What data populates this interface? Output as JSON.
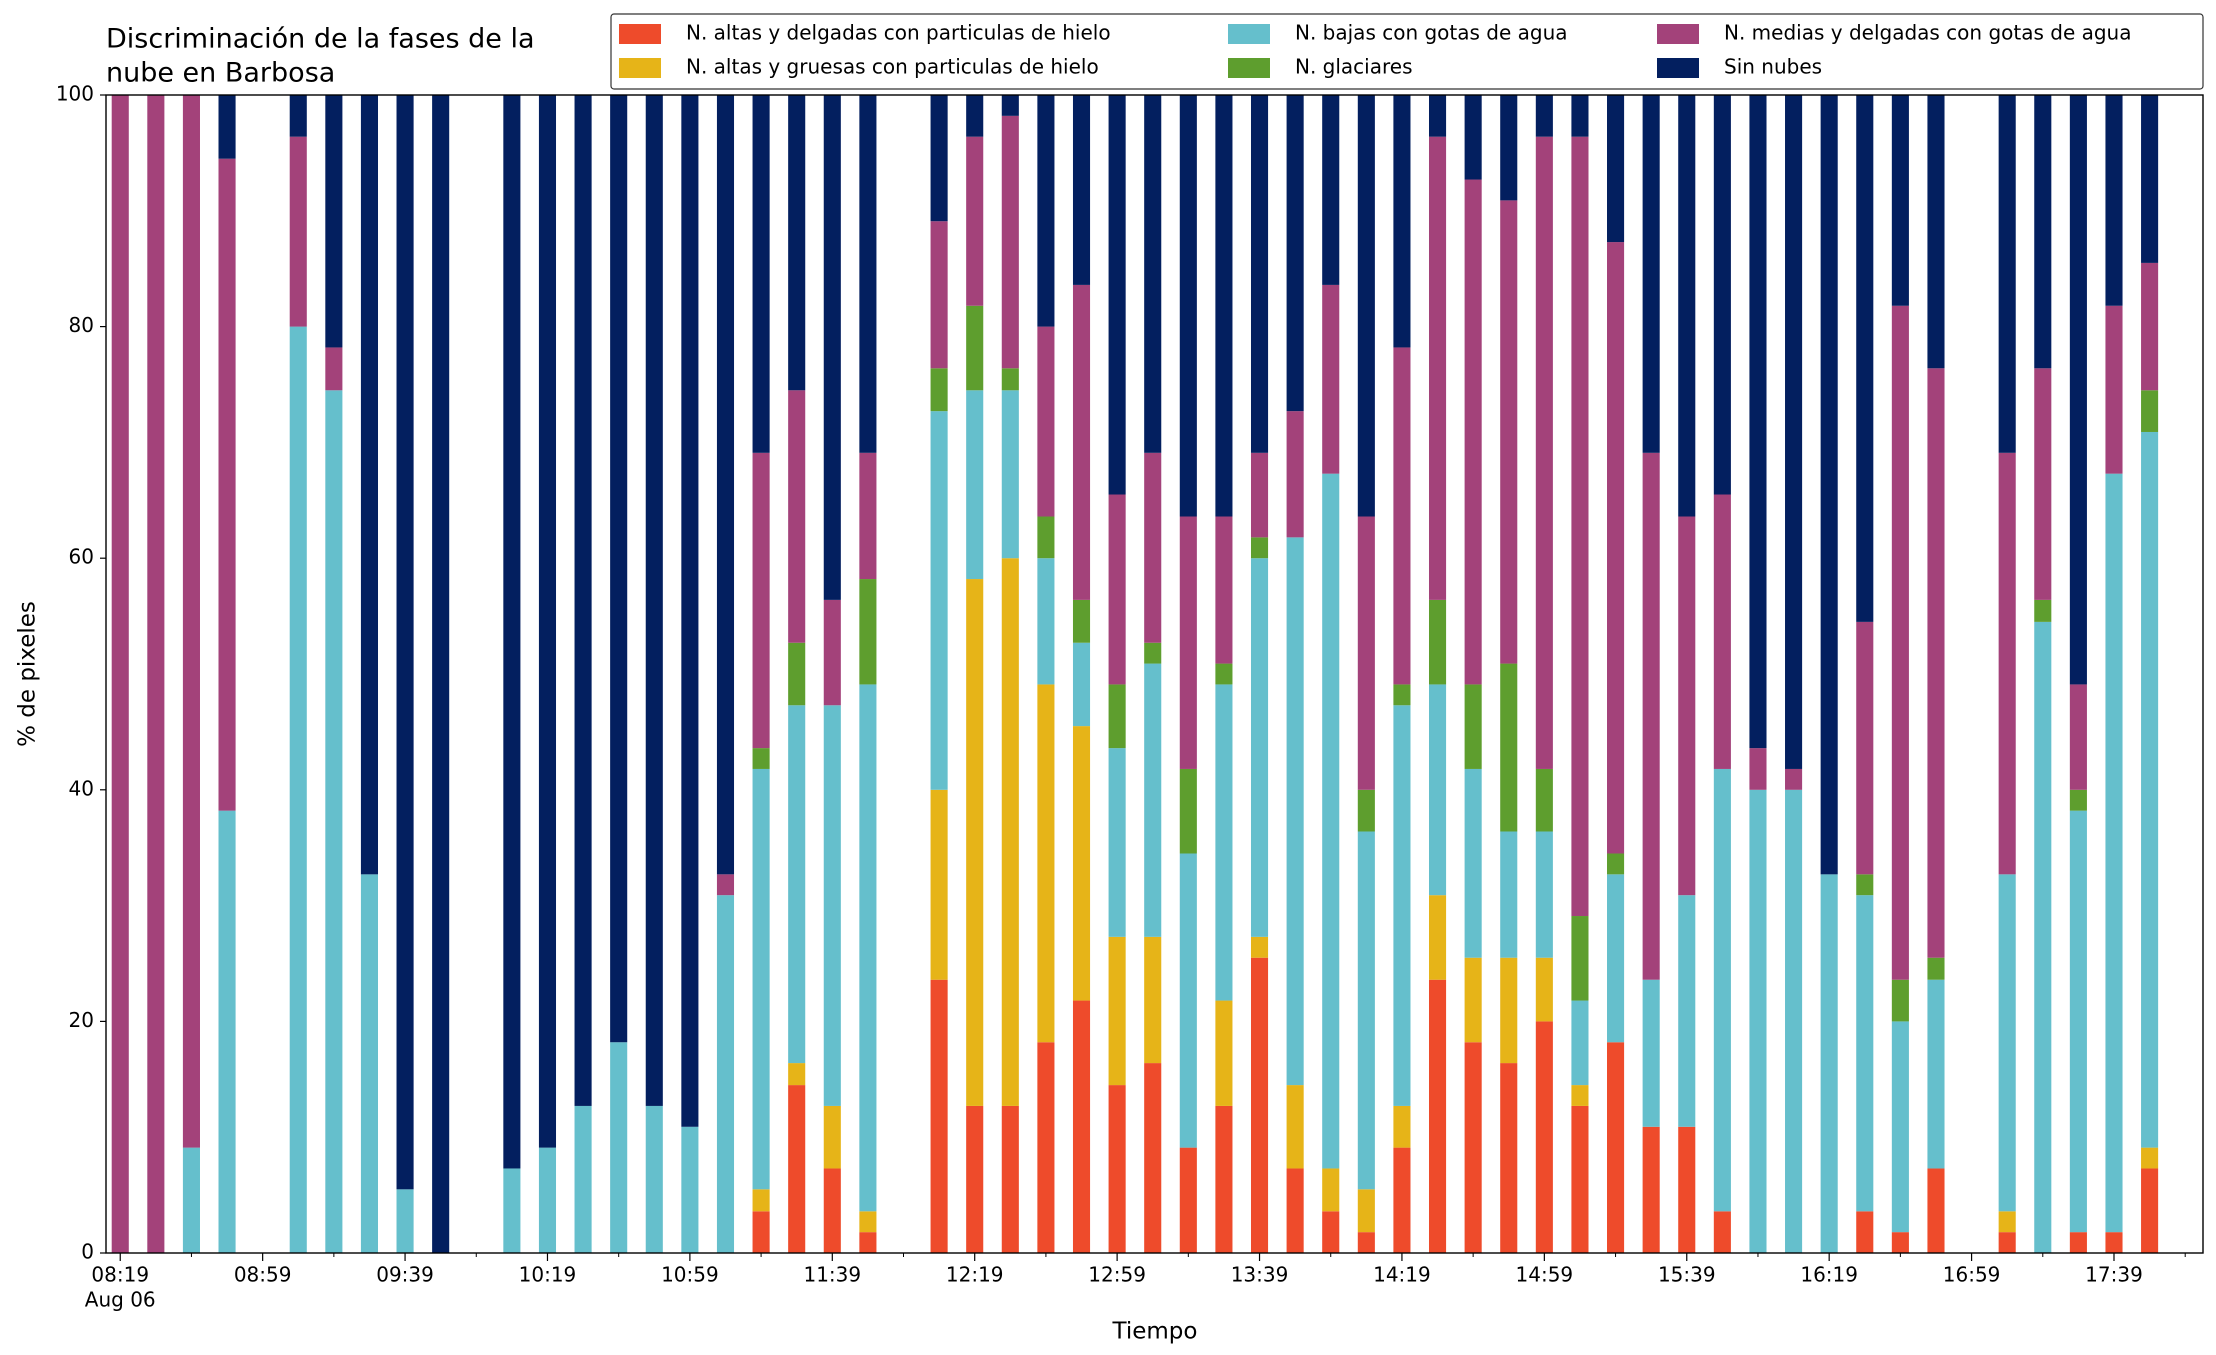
{
  "chart_data": {
    "type": "stacked_bar",
    "title": [
      "Discriminación de la fases de la",
      "nube en Barbosa"
    ],
    "xlabel": "Tiempo",
    "ylabel": "% de pixeles",
    "x": [
      "08:19",
      "08:29",
      "08:39",
      "08:49",
      "09:09",
      "09:19",
      "09:29",
      "09:39",
      "09:49",
      "10:09",
      "10:19",
      "10:29",
      "10:39",
      "10:49",
      "10:59",
      "11:09",
      "11:19",
      "11:29",
      "11:39",
      "11:49",
      "12:09",
      "12:19",
      "12:29",
      "12:39",
      "12:49",
      "12:59",
      "13:09",
      "13:19",
      "13:29",
      "13:39",
      "13:49",
      "13:59",
      "14:09",
      "14:19",
      "14:29",
      "14:39",
      "14:49",
      "14:59",
      "15:09",
      "15:19",
      "15:29",
      "15:39",
      "15:49",
      "15:59",
      "16:09",
      "16:19",
      "16:29",
      "16:39",
      "16:49",
      "17:09",
      "17:19",
      "17:29",
      "17:39",
      "17:49"
    ],
    "series": [
      {
        "name": "N. altas y delgadas con particulas de hielo",
        "color": "#ee4b2b",
        "values": [
          0,
          0,
          0,
          0,
          0,
          0,
          0,
          0,
          0,
          0,
          0,
          0,
          0,
          0,
          0,
          0,
          3.6,
          14.5,
          7.3,
          1.8,
          23.6,
          12.7,
          12.7,
          18.2,
          21.8,
          14.5,
          16.4,
          9.1,
          12.7,
          25.5,
          7.3,
          3.6,
          1.8,
          9.1,
          23.6,
          18.2,
          16.4,
          20,
          12.7,
          18.2,
          10.9,
          10.9,
          3.6,
          0,
          0,
          0,
          3.6,
          1.8,
          7.3,
          1.8,
          0,
          1.8,
          1.8,
          7.3
        ]
      },
      {
        "name": "N. altas y gruesas con particulas de hielo",
        "color": "#e6b418",
        "values": [
          0,
          0,
          0,
          0,
          0,
          0,
          0,
          0,
          0,
          0,
          0,
          0,
          0,
          0,
          0,
          0,
          1.9,
          1.9,
          5.4,
          1.8,
          16.4,
          45.5,
          47.3,
          30.9,
          23.7,
          12.8,
          10.9,
          0,
          9.1,
          1.8,
          7.2,
          3.7,
          3.7,
          3.6,
          7.3,
          7.3,
          9.1,
          5.5,
          1.8,
          0,
          0,
          0,
          0,
          0,
          0,
          0,
          0,
          0,
          0,
          1.8,
          0,
          0,
          0,
          1.8
        ]
      },
      {
        "name": "N. bajas con gotas de agua",
        "color": "#65bfcc",
        "values": [
          0,
          0,
          9.1,
          38.2,
          80,
          74.5,
          32.7,
          5.5,
          0,
          7.3,
          9.1,
          12.7,
          18.2,
          12.7,
          10.9,
          30.9,
          36.3,
          30.9,
          34.6,
          45.5,
          32.7,
          16.3,
          14.5,
          10.9,
          7.2,
          16.3,
          23.6,
          25.4,
          27.3,
          32.7,
          47.3,
          60,
          30.9,
          34.6,
          18.2,
          16.3,
          10.9,
          10.9,
          7.3,
          14.5,
          12.7,
          20,
          38.2,
          40,
          40,
          32.7,
          27.3,
          18.2,
          16.3,
          29.1,
          54.5,
          36.4,
          65.5,
          61.8
        ]
      },
      {
        "name": "N. glaciares",
        "color": "#5e9e2e",
        "values": [
          0,
          0,
          0,
          0,
          0,
          0,
          0,
          0,
          0,
          0,
          0,
          0,
          0,
          0,
          0,
          0,
          1.8,
          5.4,
          0,
          9.1,
          3.7,
          7.3,
          1.9,
          3.6,
          3.7,
          5.5,
          1.8,
          7.3,
          1.8,
          1.8,
          0,
          0,
          3.6,
          1.8,
          7.3,
          7.3,
          14.5,
          5.4,
          7.3,
          1.8,
          0,
          0,
          0,
          0,
          0,
          0,
          1.8,
          3.6,
          1.9,
          0,
          1.9,
          1.8,
          0,
          3.6
        ]
      },
      {
        "name": "N. medias y delgadas con gotas de agua",
        "color": "#a3427a",
        "values": [
          100,
          100,
          90.9,
          56.3,
          16.4,
          3.7,
          0,
          0,
          0,
          0,
          0,
          0,
          0,
          0,
          0,
          1.8,
          25.5,
          21.8,
          9.1,
          10.9,
          12.7,
          14.6,
          21.8,
          16.4,
          27.2,
          16.4,
          16.4,
          21.8,
          12.7,
          7.3,
          10.9,
          16.3,
          23.6,
          29.1,
          40,
          43.6,
          40,
          54.6,
          67.3,
          52.8,
          45.5,
          32.7,
          23.7,
          3.6,
          1.8,
          0,
          21.8,
          58.2,
          50.9,
          36.4,
          20,
          9.1,
          14.5,
          11
        ]
      },
      {
        "name": "Sin nubes",
        "color": "#031f5f",
        "values": [
          0,
          0,
          0,
          5.5,
          3.6,
          21.8,
          67.3,
          94.5,
          100,
          92.7,
          90.9,
          87.3,
          81.8,
          87.3,
          89.1,
          67.3,
          30.9,
          25.5,
          43.6,
          30.9,
          10.9,
          3.6,
          1.8,
          20,
          16.4,
          34.5,
          30.9,
          36.4,
          36.4,
          30.9,
          27.3,
          16.4,
          36.4,
          21.8,
          3.6,
          7.3,
          9.1,
          3.6,
          3.6,
          12.7,
          30.9,
          36.4,
          34.5,
          56.4,
          58.2,
          67.3,
          45.5,
          18.2,
          23.6,
          30.9,
          23.6,
          50.9,
          18.2,
          14.5
        ]
      }
    ],
    "xlim": [
      "08:15",
      "18:04"
    ],
    "xticks": [
      "08:19",
      "08:59",
      "09:39",
      "10:19",
      "10:59",
      "11:39",
      "12:19",
      "12:59",
      "13:39",
      "14:19",
      "14:59",
      "15:39",
      "16:19",
      "16:59",
      "17:39"
    ],
    "xtick_date": "Aug 06",
    "ylim": [
      0,
      100
    ],
    "yticks": [
      0,
      20,
      40,
      60,
      80,
      100
    ],
    "legend": "top-right"
  }
}
